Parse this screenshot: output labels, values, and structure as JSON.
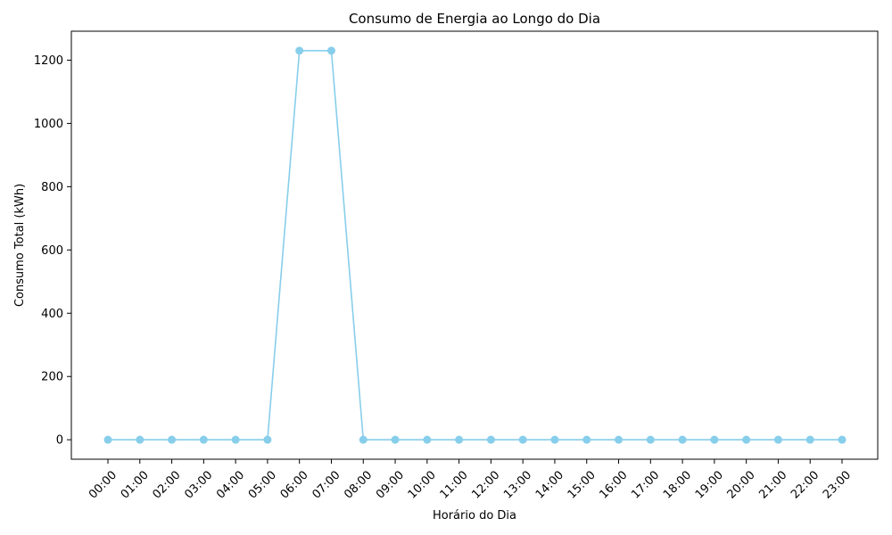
{
  "chart_data": {
    "type": "line",
    "title": "Consumo de Energia ao Longo do Dia",
    "xlabel": "Horário do Dia",
    "ylabel": "Consumo Total (kWh)",
    "categories": [
      "00:00",
      "01:00",
      "02:00",
      "03:00",
      "04:00",
      "05:00",
      "06:00",
      "07:00",
      "08:00",
      "09:00",
      "10:00",
      "11:00",
      "12:00",
      "13:00",
      "14:00",
      "15:00",
      "16:00",
      "17:00",
      "18:00",
      "19:00",
      "20:00",
      "21:00",
      "22:00",
      "23:00"
    ],
    "series": [
      {
        "values": [
          0,
          0,
          0,
          0,
          0,
          0,
          1230,
          1230,
          0,
          0,
          0,
          0,
          0,
          0,
          0,
          0,
          0,
          0,
          0,
          0,
          0,
          0,
          0,
          0
        ],
        "color": "#87CEEB",
        "marker": "circle"
      }
    ],
    "yticks": [
      0,
      200,
      400,
      600,
      800,
      1000,
      1200
    ],
    "ylim": [
      -61.5,
      1291.5
    ],
    "grid": false,
    "legend": "none",
    "xtick_rotation": "45-degree"
  }
}
